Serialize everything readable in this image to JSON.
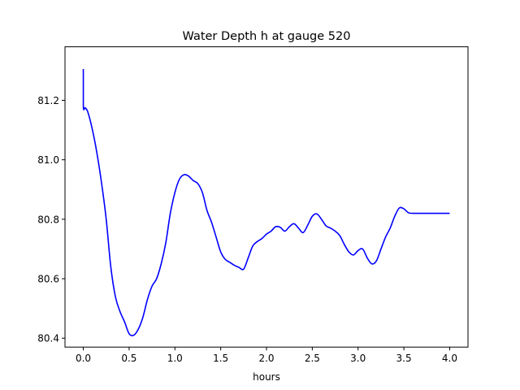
{
  "chart_data": {
    "type": "line",
    "title": "Water Depth h at gauge 520",
    "xlabel": "hours",
    "ylabel": "",
    "xlim": [
      -0.2,
      4.2
    ],
    "ylim": [
      80.37,
      81.38
    ],
    "xticks": [
      0.0,
      0.5,
      1.0,
      1.5,
      2.0,
      2.5,
      3.0,
      3.5,
      4.0
    ],
    "xtick_labels": [
      "0.0",
      "0.5",
      "1.0",
      "1.5",
      "2.0",
      "2.5",
      "3.0",
      "3.5",
      "4.0"
    ],
    "yticks": [
      80.4,
      80.6,
      80.8,
      81.0,
      81.2
    ],
    "ytick_labels": [
      "80.4",
      "80.6",
      "80.8",
      "81.0",
      "81.2"
    ],
    "grid": false,
    "legend": "none",
    "series": [
      {
        "color": "#0000ff",
        "x": [
          0.0,
          0.0,
          0.02,
          0.05,
          0.1,
          0.15,
          0.2,
          0.25,
          0.3,
          0.35,
          0.4,
          0.45,
          0.5,
          0.55,
          0.6,
          0.65,
          0.7,
          0.75,
          0.8,
          0.85,
          0.9,
          0.95,
          1.0,
          1.05,
          1.1,
          1.15,
          1.2,
          1.25,
          1.3,
          1.35,
          1.4,
          1.45,
          1.5,
          1.55,
          1.6,
          1.65,
          1.7,
          1.75,
          1.8,
          1.85,
          1.9,
          1.95,
          2.0,
          2.05,
          2.1,
          2.15,
          2.2,
          2.25,
          2.3,
          2.35,
          2.4,
          2.45,
          2.5,
          2.55,
          2.6,
          2.65,
          2.7,
          2.75,
          2.8,
          2.85,
          2.9,
          2.95,
          3.0,
          3.05,
          3.1,
          3.15,
          3.2,
          3.25,
          3.3,
          3.35,
          3.4,
          3.45,
          3.5,
          3.55,
          3.6,
          3.65,
          3.7,
          3.75,
          3.8,
          3.85,
          3.9,
          3.95,
          4.0
        ],
        "y": [
          81.305,
          81.178,
          81.175,
          81.16,
          81.1,
          81.02,
          80.92,
          80.8,
          80.64,
          80.54,
          80.49,
          80.455,
          80.415,
          80.41,
          80.43,
          80.47,
          80.53,
          80.575,
          80.6,
          80.65,
          80.72,
          80.82,
          80.89,
          80.935,
          80.95,
          80.945,
          80.93,
          80.92,
          80.89,
          80.83,
          80.79,
          80.74,
          80.69,
          80.665,
          80.655,
          80.645,
          80.638,
          80.632,
          80.67,
          80.71,
          80.725,
          80.735,
          80.75,
          80.76,
          80.775,
          80.773,
          80.76,
          80.775,
          80.785,
          80.77,
          80.755,
          80.78,
          80.81,
          80.818,
          80.8,
          80.778,
          80.77,
          80.76,
          80.745,
          80.715,
          80.69,
          80.68,
          80.695,
          80.7,
          80.67,
          80.65,
          80.66,
          80.7,
          80.74,
          80.77,
          80.81,
          80.838,
          80.835,
          80.822,
          80.82,
          80.82,
          80.82,
          80.82,
          80.82,
          80.82,
          80.82,
          80.82,
          80.82
        ]
      }
    ]
  }
}
